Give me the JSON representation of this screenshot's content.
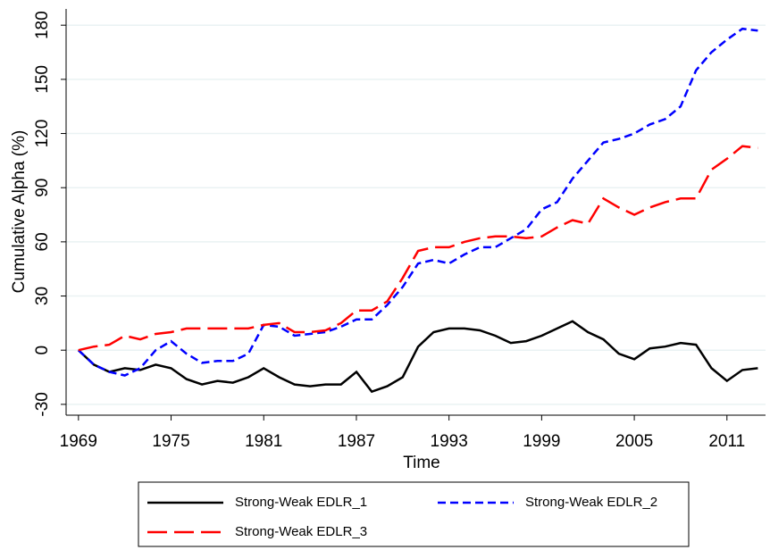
{
  "chart_data": {
    "type": "line",
    "y_label": "Cumulative Alpha (%)",
    "x_label": "Time",
    "x": [
      1969,
      1970,
      1971,
      1972,
      1973,
      1974,
      1975,
      1976,
      1977,
      1978,
      1979,
      1980,
      1981,
      1982,
      1983,
      1984,
      1985,
      1986,
      1987,
      1988,
      1989,
      1990,
      1991,
      1992,
      1993,
      1994,
      1995,
      1996,
      1997,
      1998,
      1999,
      2000,
      2001,
      2002,
      2003,
      2004,
      2005,
      2006,
      2007,
      2008,
      2009,
      2010,
      2011,
      2012,
      2013
    ],
    "series": [
      {
        "name": "Strong-Weak EDLR_1",
        "color": "#000000",
        "line_style": "solid",
        "values": [
          0,
          -8,
          -12,
          -10,
          -11,
          -8,
          -10,
          -16,
          -19,
          -17,
          -18,
          -15,
          -10,
          -15,
          -19,
          -20,
          -19,
          -19,
          -12,
          -23,
          -20,
          -15,
          2,
          10,
          12,
          12,
          11,
          8,
          4,
          5,
          8,
          12,
          16,
          10,
          6,
          -2,
          -5,
          1,
          2,
          4,
          3,
          -10,
          -17,
          -11,
          -10
        ]
      },
      {
        "name": "Strong-Weak EDLR_2",
        "color": "#0000ff",
        "line_style": "dashed",
        "values": [
          0,
          -8,
          -12,
          -14,
          -10,
          0,
          5,
          -2,
          -7,
          -6,
          -6,
          -2,
          14,
          13,
          8,
          9,
          10,
          13,
          17,
          17,
          25,
          35,
          48,
          50,
          48,
          53,
          57,
          57,
          62,
          67,
          78,
          82,
          95,
          105,
          115,
          117,
          120,
          125,
          128,
          135,
          155,
          165,
          172,
          178,
          177
        ]
      },
      {
        "name": "Strong-Weak EDLR_3",
        "color": "#ff0000",
        "line_style": "longdash",
        "values": [
          0,
          2,
          3,
          8,
          6,
          9,
          10,
          12,
          12,
          12,
          12,
          12,
          14,
          15,
          10,
          10,
          11,
          15,
          22,
          22,
          27,
          40,
          55,
          57,
          57,
          60,
          62,
          63,
          63,
          62,
          63,
          68,
          72,
          70,
          84,
          79,
          75,
          79,
          82,
          84,
          84,
          100,
          106,
          113,
          112
        ]
      }
    ],
    "xlim": [
      1968.2,
      2013.5
    ],
    "xticks": [
      1969,
      1975,
      1981,
      1987,
      1993,
      1999,
      2005,
      2011
    ],
    "ylim": [
      -36,
      189
    ],
    "yticks": [
      -30,
      0,
      30,
      60,
      90,
      120,
      150,
      180
    ],
    "grid": true,
    "legend": "bottom"
  }
}
